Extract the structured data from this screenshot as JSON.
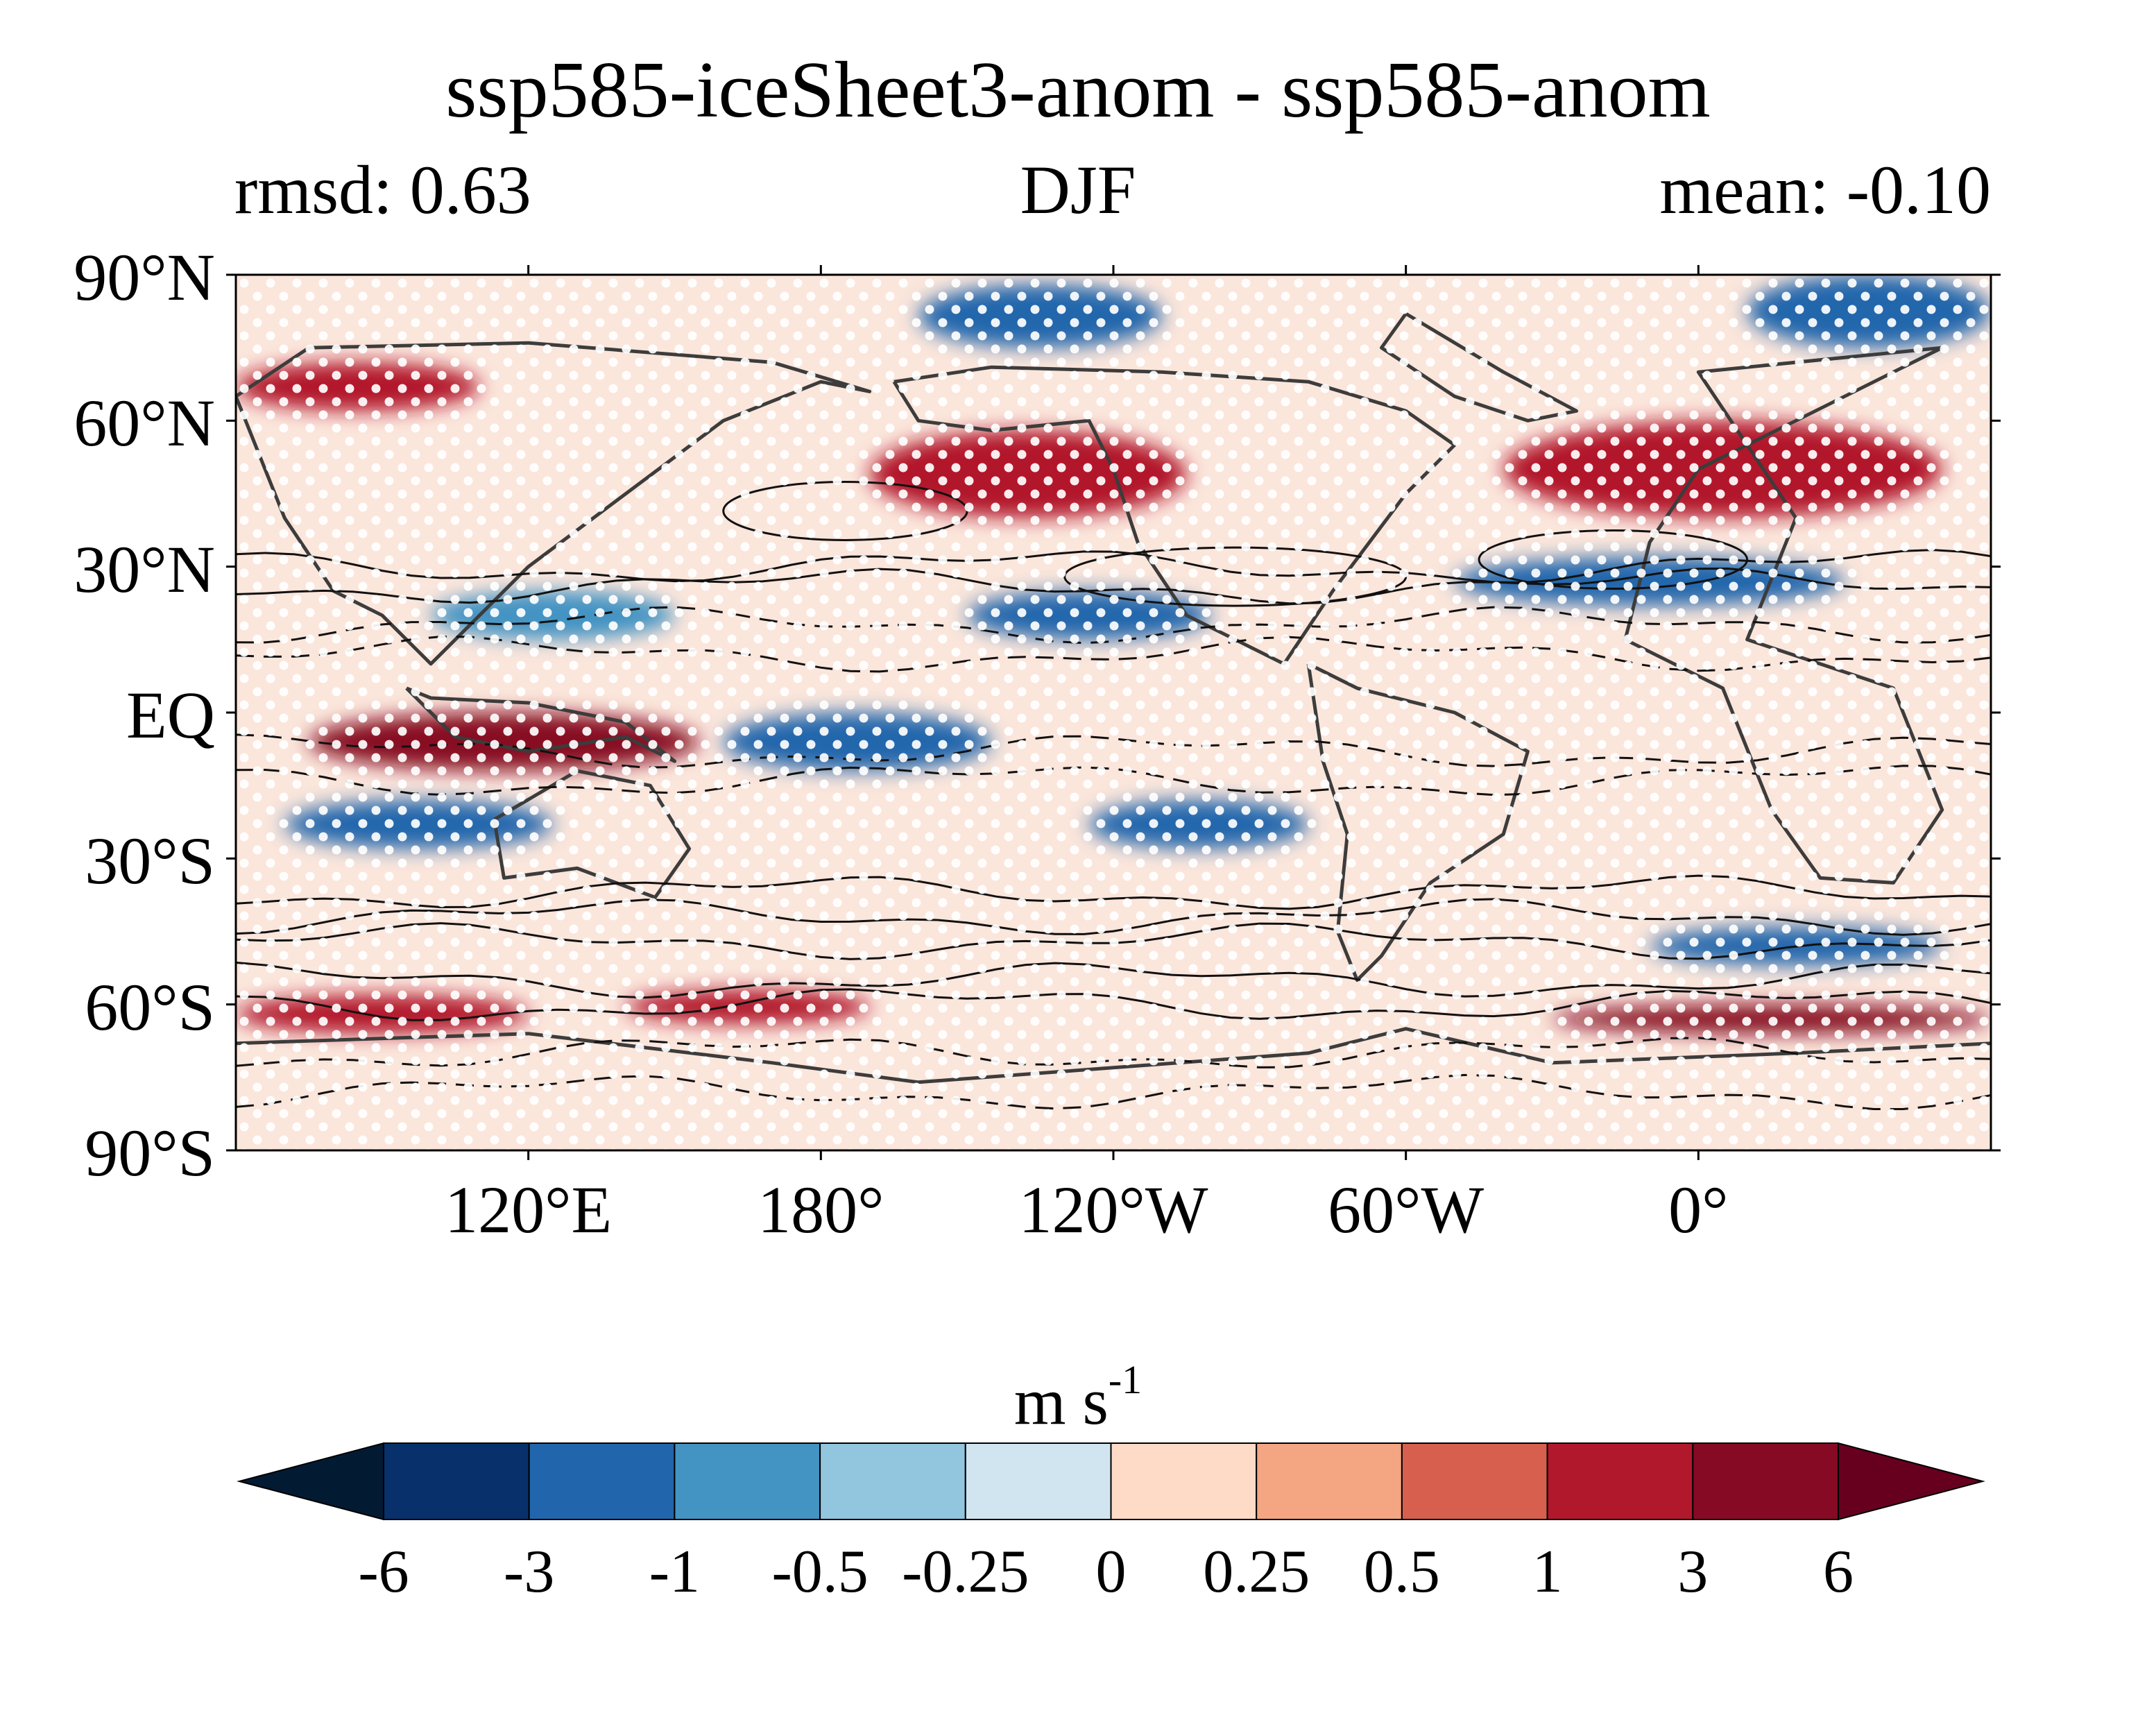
{
  "figure": {
    "title": "ssp585-iceSheet3-anom - ssp585-anom",
    "left_label": "rmsd: 0.63",
    "center_label": "DJF",
    "right_label": "mean: -0.10"
  },
  "map": {
    "projection": "PlateCarree",
    "lon_range": [
      60,
      420
    ],
    "lat_range": [
      -90,
      90
    ],
    "lat_ticks": [
      {
        "value": 90,
        "label": "90°N"
      },
      {
        "value": 60,
        "label": "60°N"
      },
      {
        "value": 30,
        "label": "30°N"
      },
      {
        "value": 0,
        "label": "EQ"
      },
      {
        "value": -30,
        "label": "30°S"
      },
      {
        "value": -60,
        "label": "60°S"
      },
      {
        "value": -90,
        "label": "90°S"
      }
    ],
    "lon_ticks": [
      {
        "value": 120,
        "label": "120°E"
      },
      {
        "value": 180,
        "label": "180°"
      },
      {
        "value": 240,
        "label": "120°W"
      },
      {
        "value": 300,
        "label": "60°W"
      },
      {
        "value": 360,
        "label": "0°"
      }
    ],
    "stippling": "white dots mark significant regions",
    "contours": "black solid (positive) and dashed (negative) climatology lines",
    "anomaly_bands": [
      {
        "lat_min": 75,
        "lat_max": 88,
        "lon_min": 200,
        "lon_max": 250,
        "value": -2
      },
      {
        "lat_min": 75,
        "lat_max": 90,
        "lon_min": 370,
        "lon_max": 420,
        "value": -3
      },
      {
        "lat_min": 62,
        "lat_max": 72,
        "lon_min": 60,
        "lon_max": 110,
        "value": 1
      },
      {
        "lat_min": 40,
        "lat_max": 58,
        "lon_min": 190,
        "lon_max": 255,
        "value": 2
      },
      {
        "lat_min": 40,
        "lat_max": 60,
        "lon_min": 320,
        "lon_max": 410,
        "value": 2
      },
      {
        "lat_min": 22,
        "lat_max": 32,
        "lon_min": 310,
        "lon_max": 390,
        "value": -2
      },
      {
        "lat_min": 15,
        "lat_max": 25,
        "lon_min": 210,
        "lon_max": 260,
        "value": -1.5
      },
      {
        "lat_min": 15,
        "lat_max": 25,
        "lon_min": 100,
        "lon_max": 150,
        "value": -1
      },
      {
        "lat_min": -12,
        "lat_max": 0,
        "lon_min": 75,
        "lon_max": 155,
        "value": 3
      },
      {
        "lat_min": -12,
        "lat_max": 0,
        "lon_min": 160,
        "lon_max": 215,
        "value": -2
      },
      {
        "lat_min": -28,
        "lat_max": -18,
        "lon_min": 70,
        "lon_max": 125,
        "value": -2
      },
      {
        "lat_min": -28,
        "lat_max": -18,
        "lon_min": 235,
        "lon_max": 280,
        "value": -1.5
      },
      {
        "lat_min": -52,
        "lat_max": -44,
        "lon_min": 350,
        "lon_max": 410,
        "value": -2
      },
      {
        "lat_min": -64,
        "lat_max": -57,
        "lon_min": 140,
        "lon_max": 190,
        "value": 1
      },
      {
        "lat_min": -66,
        "lat_max": -60,
        "lon_min": 330,
        "lon_max": 420,
        "value": 3
      },
      {
        "lat_min": -66,
        "lat_max": -58,
        "lon_min": 60,
        "lon_max": 120,
        "value": 1
      }
    ]
  },
  "colorbar": {
    "unit": "m s",
    "unit_exponent": "-1",
    "extend": "both",
    "levels": [
      -6,
      -3,
      -1,
      -0.5,
      -0.25,
      0,
      0.25,
      0.5,
      1,
      3,
      6
    ],
    "tick_labels": [
      "-6",
      "-3",
      "-1",
      "-0.5",
      "-0.25",
      "0",
      "0.25",
      "0.5",
      "1",
      "3",
      "6"
    ],
    "colors": [
      "#08306b",
      "#2166ac",
      "#4393c3",
      "#92c5de",
      "#d1e5f0",
      "#fddbc7",
      "#f4a582",
      "#d6604d",
      "#b2182b",
      "#870a24"
    ],
    "under_color": "#031a33",
    "over_color": "#67001f"
  }
}
